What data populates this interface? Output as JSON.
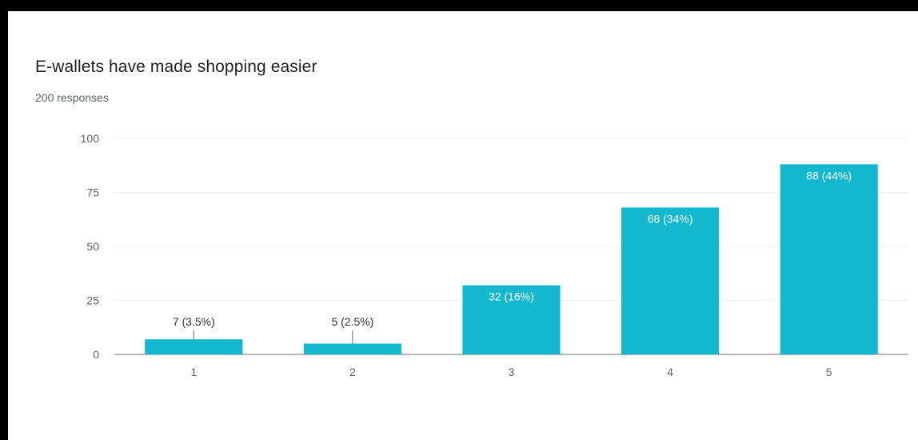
{
  "card": {
    "title": "E-wallets have made shopping easier",
    "subtitle": "200 responses"
  },
  "colors": {
    "bar": "#13b8cf",
    "grid": "#eeeeee",
    "axis": "#9e9e9e",
    "frame": "#000000"
  },
  "chart_data": {
    "type": "bar",
    "categories": [
      "1",
      "2",
      "3",
      "4",
      "5"
    ],
    "values": [
      7,
      5,
      32,
      68,
      88
    ],
    "data_labels": [
      "7 (3.5%)",
      "5 (2.5%)",
      "32 (16%)",
      "68 (34%)",
      "88 (44%)"
    ],
    "ylim": [
      0,
      100
    ],
    "yticks": [
      0,
      25,
      50,
      75,
      100
    ],
    "grid": true,
    "legend": "none"
  }
}
